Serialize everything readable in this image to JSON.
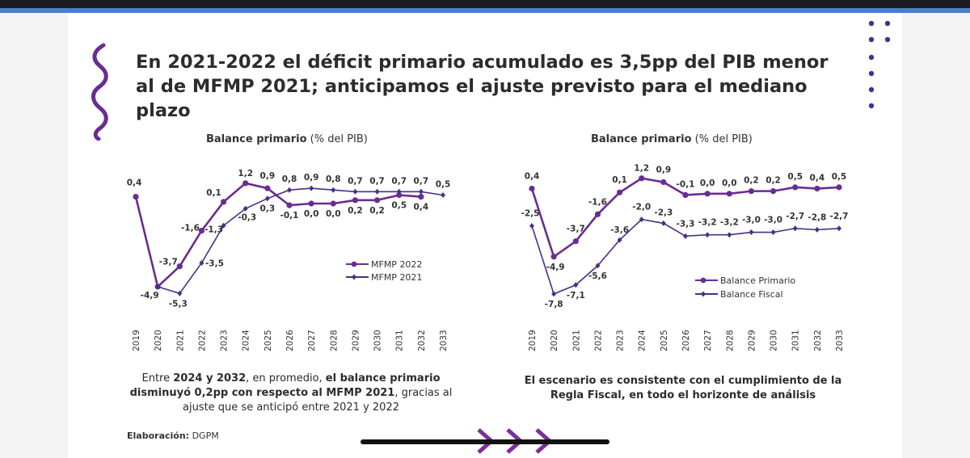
{
  "slide": {
    "title": "En 2021-2022 el déficit primario acumulado es 3,5pp del PIB menor al de MFMP 2021; anticipamos el ajuste previsto para el mediano plazo",
    "colors": {
      "primary": "#6a2c91",
      "secondary": "#4a2f87",
      "text": "#2c2c2c"
    },
    "left_caption": {
      "p1": "Entre ",
      "b1": "2024 y 2032",
      "p2": ", en promedio, ",
      "b2": "el balance primario disminuyó 0,2pp con respecto al MFMP 2021",
      "p3": ", gracias al ajuste que se anticipó entre 2021 y 2022"
    },
    "right_caption": "El escenario es consistente con el cumplimiento de la Regla Fiscal, en todo el horizonte de análisis",
    "footer": {
      "label": "Elaboración:",
      "value": " DGPM"
    }
  },
  "chart_data": [
    {
      "type": "line",
      "title_bold": "Balance primario",
      "title_rest": " (% del PIB)",
      "categories": [
        "2019",
        "2020",
        "2021",
        "2022",
        "2023",
        "2024",
        "2025",
        "2026",
        "2027",
        "2028",
        "2029",
        "2030",
        "2031",
        "2032",
        "2033"
      ],
      "series": [
        {
          "name": "MFMP 2022",
          "values": [
            0.4,
            -4.9,
            -3.7,
            -1.6,
            0.1,
            1.2,
            0.9,
            -0.1,
            0.0,
            0.0,
            0.2,
            0.2,
            0.5,
            0.4,
            null
          ],
          "labels": [
            "0,4",
            "-4,9",
            "-3,7",
            "-1,6",
            "0,1",
            "1,2",
            "0,9",
            "-0,1",
            "0,0",
            "0,0",
            "0,2",
            "0,2",
            "0,5",
            "0,4",
            ""
          ],
          "marker": "circle"
        },
        {
          "name": "MFMP 2021",
          "values": [
            null,
            -4.9,
            -5.3,
            -3.5,
            -1.3,
            -0.3,
            0.3,
            0.8,
            0.9,
            0.8,
            0.7,
            0.7,
            0.7,
            0.7,
            0.5
          ],
          "labels": [
            "",
            "",
            "-5,3",
            "-3,5",
            "-1,3",
            "-0,3",
            "0,3",
            "0,8",
            "0,9",
            "0,8",
            "0,7",
            "0,7",
            "0,7",
            "0,7",
            "0,5"
          ],
          "marker": "diamond"
        }
      ],
      "ylim": [
        -6,
        2
      ]
    },
    {
      "type": "line",
      "title_bold": "Balance primario",
      "title_rest": " (% del PIB)",
      "categories": [
        "2019",
        "2020",
        "2021",
        "2022",
        "2023",
        "2024",
        "2025",
        "2026",
        "2027",
        "2028",
        "2029",
        "2030",
        "2031",
        "2032",
        "2033"
      ],
      "series": [
        {
          "name": "Balance Primario",
          "values": [
            0.4,
            -4.9,
            -3.7,
            -1.6,
            0.1,
            1.2,
            0.9,
            -0.1,
            0.0,
            0.0,
            0.2,
            0.2,
            0.5,
            0.4,
            0.5
          ],
          "labels": [
            "0,4",
            "-4,9",
            "-3,7",
            "-1,6",
            "0,1",
            "1,2",
            "0,9",
            "-0,1",
            "0,0",
            "0,0",
            "0,2",
            "0,2",
            "0,5",
            "0,4",
            "0,5"
          ],
          "marker": "circle"
        },
        {
          "name": "Balance Fiscal",
          "values": [
            -2.5,
            -7.8,
            -7.1,
            -5.6,
            -3.6,
            -2.0,
            -2.3,
            -3.3,
            -3.2,
            -3.2,
            -3.0,
            -3.0,
            -2.7,
            -2.8,
            -2.7
          ],
          "labels": [
            "-2,5",
            "-7,8",
            "-7,1",
            "-5,6",
            "-3,6",
            "-2,0",
            "-2,3",
            "-3,3",
            "-3,2",
            "-3,2",
            "-3,0",
            "-3,0",
            "-2,7",
            "-2,8",
            "-2,7"
          ],
          "marker": "diamond"
        }
      ],
      "ylim": [
        -9,
        2
      ]
    }
  ]
}
